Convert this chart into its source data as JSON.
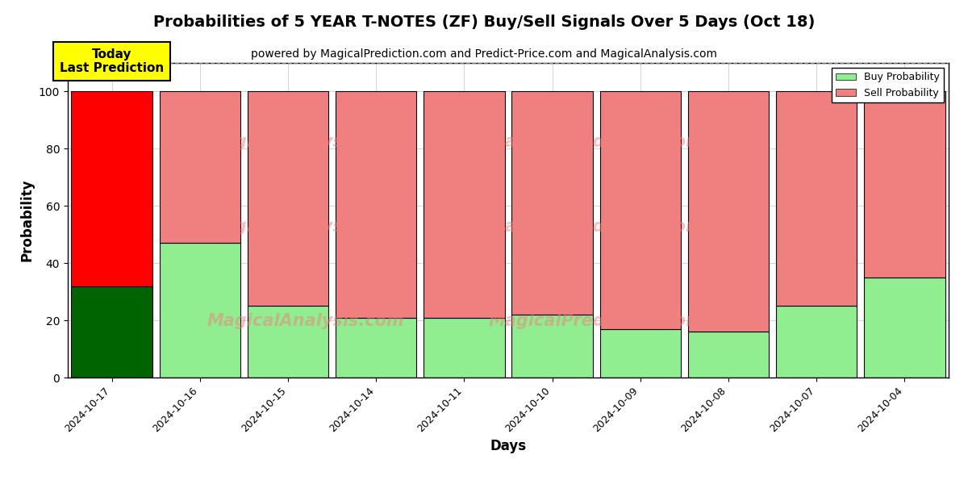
{
  "title": "Probabilities of 5 YEAR T-NOTES (ZF) Buy/Sell Signals Over 5 Days (Oct 18)",
  "subtitle": "powered by MagicalPrediction.com and Predict-Price.com and MagicalAnalysis.com",
  "xlabel": "Days",
  "ylabel": "Probability",
  "categories": [
    "2024-10-17",
    "2024-10-16",
    "2024-10-15",
    "2024-10-14",
    "2024-10-11",
    "2024-10-10",
    "2024-10-09",
    "2024-10-08",
    "2024-10-07",
    "2024-10-04"
  ],
  "buy_values": [
    32,
    47,
    25,
    21,
    21,
    22,
    17,
    16,
    25,
    35
  ],
  "sell_values": [
    68,
    53,
    75,
    79,
    79,
    78,
    83,
    84,
    75,
    65
  ],
  "today_buy_color": "#006400",
  "today_sell_color": "#ff0000",
  "buy_color": "#90ee90",
  "sell_color": "#f08080",
  "today_label_bg": "#ffff00",
  "today_label_text": "Today\nLast Prediction",
  "legend_buy": "Buy Probability",
  "legend_sell": "Sell Probability",
  "ylim": [
    0,
    110
  ],
  "yticks": [
    0,
    20,
    40,
    60,
    80,
    100
  ],
  "dashed_line_y": 110,
  "background_color": "#ffffff",
  "grid_color": "#aaaaaa",
  "bar_width": 0.92,
  "title_fontsize": 14,
  "subtitle_fontsize": 10,
  "axis_label_fontsize": 12,
  "tick_fontsize": 9,
  "legend_fontsize": 9
}
